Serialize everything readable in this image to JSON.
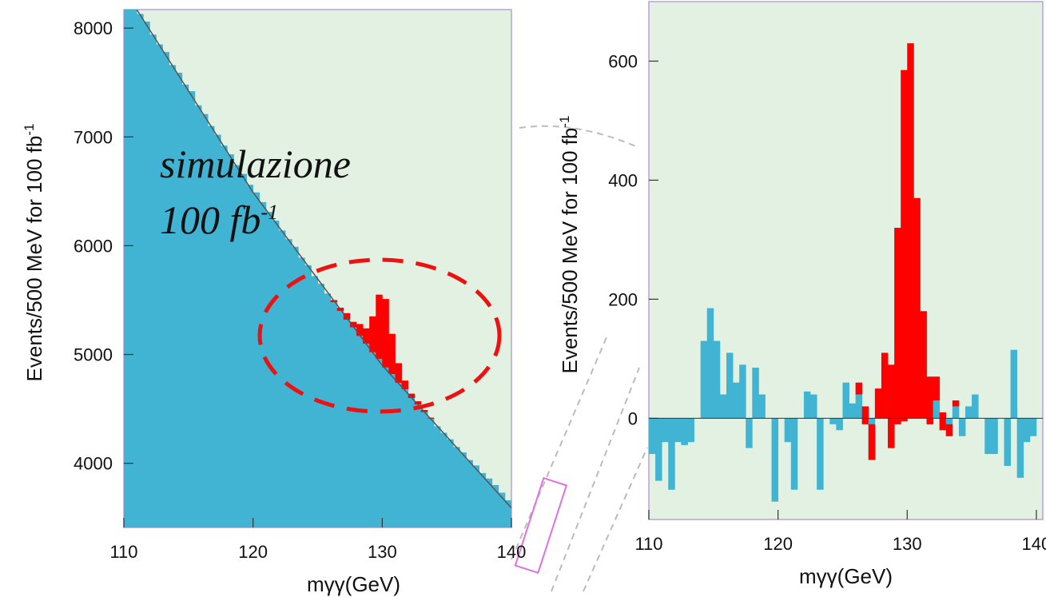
{
  "chart_data": [
    {
      "type": "histogram",
      "annotation": "simulazione",
      "annotation2": "100 fb",
      "annotation2_sup": "-1",
      "ylabel": "Events/500 MeV for 100 fb",
      "ylabel_sup": "-1",
      "xlabel": "mγγ(GeV)",
      "xlim": [
        110,
        140
      ],
      "ylim": [
        3410,
        8170
      ],
      "xticks": [
        110,
        120,
        130,
        140
      ],
      "yticks": [
        4000,
        5000,
        6000,
        7000,
        8000
      ],
      "bins": [
        110,
        110.5,
        111,
        111.5,
        112,
        112.5,
        113,
        113.5,
        114,
        114.5,
        115,
        115.5,
        116,
        116.5,
        117,
        117.5,
        118,
        118.5,
        119,
        119.5,
        120,
        120.5,
        121,
        121.5,
        122,
        122.5,
        123,
        123.5,
        124,
        124.5,
        125,
        125.5,
        126,
        126.5,
        127,
        127.5,
        128,
        128.5,
        129,
        129.5,
        130,
        130.5,
        131,
        131.5,
        132,
        132.5,
        133,
        133.5,
        134,
        134.5,
        135,
        135.5,
        136,
        136.5,
        137,
        137.5,
        138,
        138.5,
        139,
        139.5,
        140
      ],
      "series": [
        {
          "color": "#40b4d2",
          "values": [
            8320,
            8240,
            8130,
            8060,
            7940,
            7850,
            7780,
            7660,
            7590,
            7480,
            7420,
            7290,
            7210,
            7100,
            7020,
            6920,
            6840,
            6740,
            6660,
            6560,
            6490,
            6400,
            6310,
            6230,
            6140,
            6060,
            5990,
            5890,
            5820,
            5720,
            5650,
            5560,
            5480,
            5400,
            5320,
            5250,
            5170,
            5100,
            5020,
            4960,
            4880,
            4820,
            4740,
            4680,
            4600,
            4540,
            4470,
            4410,
            4340,
            4280,
            4220,
            4150,
            4100,
            4030,
            3980,
            3910,
            3860,
            3800,
            3730,
            3660
          ]
        },
        {
          "color": "#ff0000",
          "values": [
            0,
            0,
            0,
            0,
            0,
            0,
            0,
            0,
            0,
            0,
            0,
            0,
            0,
            0,
            0,
            0,
            0,
            0,
            0,
            0,
            0,
            0,
            0,
            0,
            0,
            0,
            0,
            0,
            0,
            0,
            0,
            0,
            20,
            30,
            60,
            50,
            110,
            140,
            330,
            590,
            630,
            370,
            180,
            80,
            40,
            30,
            20,
            10,
            0,
            0,
            0,
            0,
            0,
            0,
            0,
            0,
            0,
            0,
            0,
            0
          ]
        }
      ],
      "fit": {
        "color": "#555555",
        "x": [
          111,
          120,
          130,
          140
        ],
        "values": [
          8170,
          6490,
          4900,
          3590
        ]
      }
    },
    {
      "type": "histogram",
      "ylabel": "Events/500 MeV for 100 fb",
      "ylabel_sup": "-1",
      "xlabel": "mγγ(GeV)",
      "xlim": [
        110,
        140.5
      ],
      "ylim": [
        -170,
        700
      ],
      "xticks": [
        110,
        120,
        130,
        140
      ],
      "yticks": [
        0,
        200,
        400,
        600
      ],
      "bins": [
        110,
        110.5,
        111,
        111.5,
        112,
        112.5,
        113,
        113.5,
        114,
        114.5,
        115,
        115.5,
        116,
        116.5,
        117,
        117.5,
        118,
        118.5,
        119,
        119.5,
        120,
        120.5,
        121,
        121.5,
        122,
        122.5,
        123,
        123.5,
        124,
        124.5,
        125,
        125.5,
        126,
        126.5,
        127,
        127.5,
        128,
        128.5,
        129,
        129.5,
        130,
        130.5,
        131,
        131.5,
        132,
        132.5,
        133,
        133.5,
        134,
        134.5,
        135,
        135.5,
        136,
        136.5,
        137,
        137.5,
        138,
        138.5,
        139,
        139.5,
        140
      ],
      "series": [
        {
          "color": "#40b4d2",
          "values": [
            -60,
            -105,
            -40,
            -120,
            -40,
            -45,
            -40,
            0,
            130,
            185,
            130,
            40,
            110,
            60,
            90,
            -50,
            85,
            40,
            0,
            -140,
            0,
            -40,
            -120,
            0,
            45,
            40,
            -120,
            0,
            -10,
            -20,
            60,
            25,
            40,
            -10,
            -70,
            0,
            0,
            -50,
            -10,
            -5,
            0,
            0,
            0,
            -10,
            30,
            -20,
            -30,
            20,
            -30,
            20,
            40,
            0,
            -60,
            -60,
            0,
            -80,
            115,
            -100,
            -40,
            -30
          ]
        },
        {
          "color": "#ff0000",
          "values": [
            0,
            0,
            0,
            0,
            0,
            0,
            0,
            0,
            0,
            0,
            0,
            0,
            0,
            0,
            0,
            0,
            0,
            0,
            0,
            0,
            0,
            0,
            0,
            0,
            0,
            0,
            0,
            0,
            0,
            0,
            0,
            0,
            20,
            30,
            60,
            50,
            110,
            140,
            330,
            590,
            630,
            370,
            180,
            80,
            40,
            30,
            20,
            10,
            0,
            0,
            0,
            0,
            0,
            0,
            0,
            0,
            0,
            0,
            0,
            0
          ]
        }
      ]
    }
  ]
}
